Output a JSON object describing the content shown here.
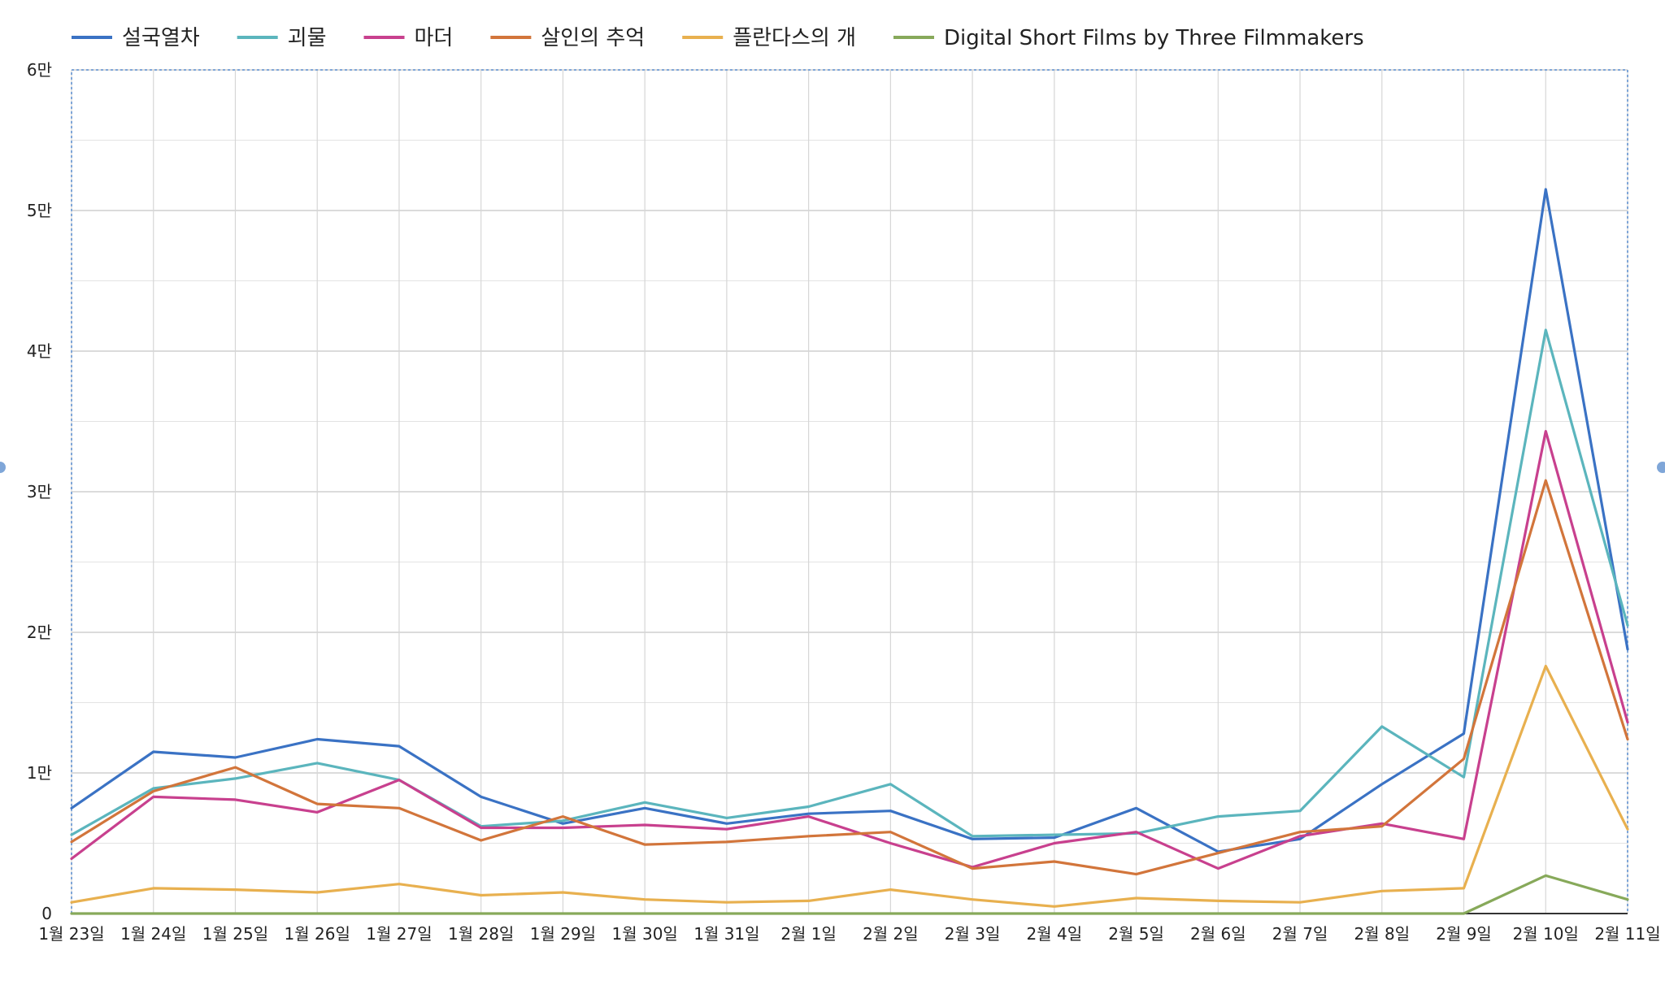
{
  "chart_data": {
    "type": "line",
    "title": "",
    "xlabel": "",
    "ylabel": "",
    "ylim": [
      0,
      60000
    ],
    "grid": true,
    "legend": "top-left",
    "categories": [
      "1월 23일",
      "1월 24일",
      "1월 25일",
      "1월 26일",
      "1월 27일",
      "1월 28일",
      "1월 29일",
      "1월 30일",
      "1월 31일",
      "2월 1일",
      "2월 2일",
      "2월 3일",
      "2월 4일",
      "2월 5일",
      "2월 6일",
      "2월 7일",
      "2월 8일",
      "2월 9일",
      "2월 10일",
      "2월 11일"
    ],
    "y_ticks": [
      {
        "value": 0,
        "label": "0"
      },
      {
        "value": 10000,
        "label": "1만"
      },
      {
        "value": 20000,
        "label": "2만"
      },
      {
        "value": 30000,
        "label": "3만"
      },
      {
        "value": 40000,
        "label": "4만"
      },
      {
        "value": 50000,
        "label": "5만"
      },
      {
        "value": 60000,
        "label": "6만"
      }
    ],
    "series": [
      {
        "name": "설국열차",
        "color": "#3a72c4",
        "values": [
          7500,
          11500,
          11100,
          12400,
          11900,
          8300,
          6400,
          7500,
          6400,
          7100,
          7300,
          5300,
          5400,
          7500,
          4400,
          5300,
          9200,
          12800,
          51500,
          18800
        ]
      },
      {
        "name": "괴물",
        "color": "#5bb5bd",
        "values": [
          5600,
          8900,
          9600,
          10700,
          9500,
          6200,
          6600,
          7900,
          6800,
          7600,
          9200,
          5500,
          5600,
          5700,
          6900,
          7300,
          13300,
          9700,
          41500,
          20500
        ]
      },
      {
        "name": "마더",
        "color": "#c8408e",
        "values": [
          3900,
          8300,
          8100,
          7200,
          9500,
          6100,
          6100,
          6300,
          6000,
          6900,
          5000,
          3300,
          5000,
          5800,
          3200,
          5500,
          6400,
          5300,
          34300,
          13600
        ]
      },
      {
        "name": "살인의 추억",
        "color": "#d2753b",
        "values": [
          5100,
          8700,
          10400,
          7800,
          7500,
          5200,
          6900,
          4900,
          5100,
          5500,
          5800,
          3200,
          3700,
          2800,
          4300,
          5800,
          6200,
          11000,
          30800,
          12400
        ]
      },
      {
        "name": "플란다스의 개",
        "color": "#e8b04f",
        "values": [
          800,
          1800,
          1700,
          1500,
          2100,
          1300,
          1500,
          1000,
          800,
          900,
          1700,
          1000,
          500,
          1100,
          900,
          800,
          1600,
          1800,
          17600,
          6000
        ]
      },
      {
        "name": "Digital Short Films by Three Filmmakers",
        "color": "#87a95a",
        "values": [
          0,
          0,
          0,
          0,
          0,
          0,
          0,
          0,
          0,
          0,
          0,
          0,
          0,
          0,
          0,
          0,
          0,
          0,
          2700,
          1000
        ]
      }
    ]
  }
}
